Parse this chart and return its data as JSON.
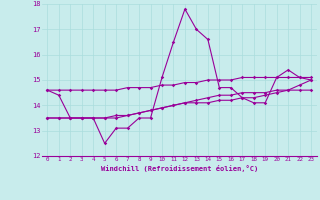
{
  "xlabel": "Windchill (Refroidissement éolien,°C)",
  "ylabel": "",
  "background_color": "#c8ecec",
  "grid_color": "#aadddd",
  "line_color": "#990099",
  "xlim": [
    -0.5,
    23.5
  ],
  "ylim": [
    12,
    18
  ],
  "yticks": [
    12,
    13,
    14,
    15,
    16,
    17,
    18
  ],
  "xticks": [
    0,
    1,
    2,
    3,
    4,
    5,
    6,
    7,
    8,
    9,
    10,
    11,
    12,
    13,
    14,
    15,
    16,
    17,
    18,
    19,
    20,
    21,
    22,
    23
  ],
  "series": {
    "line1": [
      14.6,
      14.4,
      13.5,
      13.5,
      13.5,
      12.5,
      13.1,
      13.1,
      13.5,
      13.5,
      15.1,
      16.5,
      17.8,
      17.0,
      16.6,
      14.7,
      14.7,
      14.3,
      14.1,
      14.1,
      15.1,
      15.4,
      15.1,
      15.0
    ],
    "line2": [
      14.6,
      14.6,
      14.6,
      14.6,
      14.6,
      14.6,
      14.6,
      14.7,
      14.7,
      14.7,
      14.8,
      14.8,
      14.9,
      14.9,
      15.0,
      15.0,
      15.0,
      15.1,
      15.1,
      15.1,
      15.1,
      15.1,
      15.1,
      15.1
    ],
    "line3": [
      13.5,
      13.5,
      13.5,
      13.5,
      13.5,
      13.5,
      13.6,
      13.6,
      13.7,
      13.8,
      13.9,
      14.0,
      14.1,
      14.1,
      14.1,
      14.2,
      14.2,
      14.3,
      14.3,
      14.4,
      14.5,
      14.6,
      14.6,
      14.6
    ],
    "line4": [
      13.5,
      13.5,
      13.5,
      13.5,
      13.5,
      13.5,
      13.5,
      13.6,
      13.7,
      13.8,
      13.9,
      14.0,
      14.1,
      14.2,
      14.3,
      14.4,
      14.4,
      14.5,
      14.5,
      14.5,
      14.6,
      14.6,
      14.8,
      15.0
    ]
  }
}
